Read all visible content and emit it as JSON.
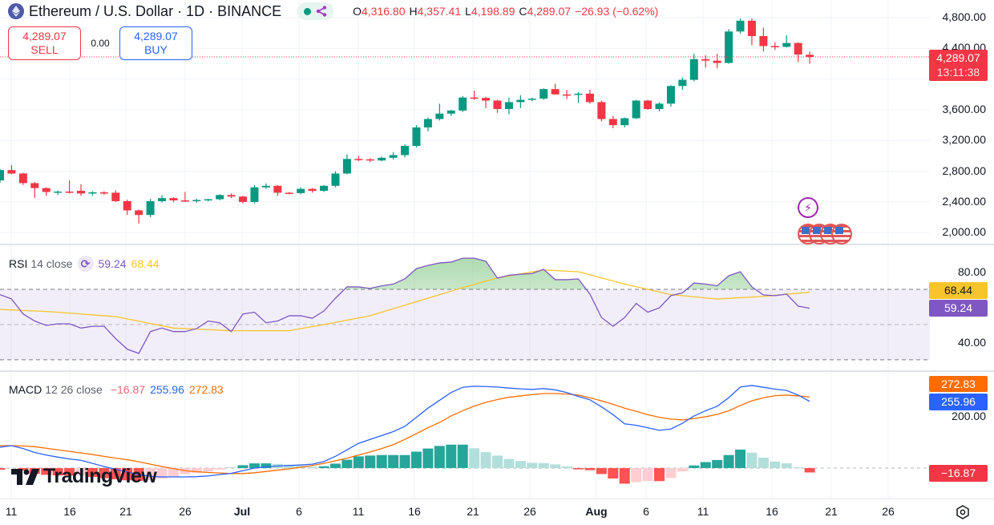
{
  "header": {
    "title": "Ethereum / U.S. Dollar · 1D · BINANCE",
    "ohlc": {
      "o_label": "O",
      "o": "4,316.80",
      "h_label": "H",
      "h": "4,357.41",
      "l_label": "L",
      "l": "4,198.89",
      "c_label": "C",
      "c": "4,289.07",
      "change": "−26.93 (−0.62%)"
    }
  },
  "trade": {
    "sell_price": "4,289.07",
    "sell_label": "SELL",
    "spread": "0.00",
    "buy_price": "4,289.07",
    "buy_label": "BUY"
  },
  "price_axis": {
    "labels": [
      "4,800.00",
      "4,400.00",
      "3,600.00",
      "3,200.00",
      "2,800.00",
      "2,400.00",
      "2,000.00"
    ],
    "current_price": "4,289.07",
    "countdown": "13:11:38"
  },
  "rsi": {
    "label": "RSI",
    "params": "14 close",
    "value": "59.24",
    "ma_value": "68.44",
    "axis_labels": [
      "80.00",
      "40.00"
    ]
  },
  "macd": {
    "label": "MACD",
    "params": "12 26 close",
    "hist_value": "−16.87",
    "macd_value": "255.96",
    "signal_value": "272.83",
    "axis_labels": [
      "200.00"
    ]
  },
  "time_axis": [
    "11",
    "16",
    "21",
    "26",
    "Jul",
    "6",
    "11",
    "16",
    "21",
    "26",
    "Aug",
    "6",
    "11",
    "16",
    "21",
    "26"
  ],
  "brand": {
    "logo": "TradingView"
  },
  "icons": {
    "symbol": "ethereum-icon",
    "status": "market-open-dot",
    "share": "share-icon",
    "events": [
      "lightning-icon",
      "us-flag-icon",
      "us-flag-icon",
      "us-flag-icon",
      "us-flag-icon"
    ],
    "settings": "settings-icon"
  },
  "colors": {
    "up": "#089981",
    "down": "#f23645",
    "rsi": "#7e57c2",
    "rsi_ma": "#f7c52b",
    "macd": "#2962ff",
    "signal": "#ff6d00",
    "hist_up_strong": "#26a69a",
    "hist_up_weak": "#b2dfdb",
    "hist_down_strong": "#ff5252",
    "hist_down_weak": "#ffcdd2"
  },
  "chart_data": {
    "type": "candlestick",
    "symbol": "Ethereum / U.S. Dollar",
    "interval": "1D",
    "ylim": [
      1846,
      5030
    ],
    "grid": true,
    "candles_fields": [
      "date",
      "open",
      "high",
      "low",
      "close"
    ],
    "candles": [
      [
        "Jun 10",
        2680,
        2830,
        2650,
        2815
      ],
      [
        "Jun 11",
        2815,
        2880,
        2760,
        2770
      ],
      [
        "Jun 12",
        2770,
        2780,
        2620,
        2645
      ],
      [
        "Jun 13",
        2645,
        2660,
        2450,
        2580
      ],
      [
        "Jun 14",
        2580,
        2590,
        2480,
        2530
      ],
      [
        "Jun 15",
        2520,
        2550,
        2490,
        2535
      ],
      [
        "Jun 16",
        2535,
        2680,
        2510,
        2530
      ],
      [
        "Jun 17",
        2545,
        2630,
        2480,
        2510
      ],
      [
        "Jun 18",
        2510,
        2540,
        2480,
        2525
      ],
      [
        "Jun 19",
        2525,
        2540,
        2490,
        2520
      ],
      [
        "Jun 20",
        2520,
        2550,
        2400,
        2410
      ],
      [
        "Jun 21",
        2410,
        2430,
        2230,
        2290
      ],
      [
        "Jun 22",
        2290,
        2300,
        2120,
        2230
      ],
      [
        "Jun 23",
        2230,
        2440,
        2200,
        2410
      ],
      [
        "Jun 24",
        2410,
        2490,
        2390,
        2450
      ],
      [
        "Jun 25",
        2450,
        2460,
        2400,
        2420
      ],
      [
        "Jun 26",
        2420,
        2530,
        2400,
        2415
      ],
      [
        "Jun 27",
        2415,
        2440,
        2390,
        2425
      ],
      [
        "Jun 28",
        2425,
        2440,
        2410,
        2435
      ],
      [
        "Jun 29",
        2435,
        2500,
        2420,
        2490
      ],
      [
        "Jun 30",
        2490,
        2510,
        2450,
        2470
      ],
      [
        "Jul 1",
        2470,
        2480,
        2380,
        2400
      ],
      [
        "Jul 2",
        2400,
        2620,
        2380,
        2590
      ],
      [
        "Jul 3",
        2590,
        2640,
        2570,
        2610
      ],
      [
        "Jul 4",
        2610,
        2620,
        2480,
        2520
      ],
      [
        "Jul 5",
        2520,
        2530,
        2500,
        2515
      ],
      [
        "Jul 6",
        2515,
        2590,
        2500,
        2570
      ],
      [
        "Jul 7",
        2570,
        2580,
        2520,
        2545
      ],
      [
        "Jul 8",
        2545,
        2620,
        2530,
        2610
      ],
      [
        "Jul 9",
        2610,
        2800,
        2590,
        2770
      ],
      [
        "Jul 10",
        2770,
        3020,
        2760,
        2960
      ],
      [
        "Jul 11",
        2960,
        3000,
        2930,
        2955
      ],
      [
        "Jul 12",
        2955,
        2970,
        2920,
        2940
      ],
      [
        "Jul 13",
        2940,
        2990,
        2930,
        2975
      ],
      [
        "Jul 14",
        2975,
        3050,
        2950,
        3010
      ],
      [
        "Jul 15",
        3010,
        3150,
        2980,
        3130
      ],
      [
        "Jul 16",
        3130,
        3400,
        3110,
        3370
      ],
      [
        "Jul 17",
        3370,
        3500,
        3320,
        3480
      ],
      [
        "Jul 18",
        3480,
        3680,
        3460,
        3550
      ],
      [
        "Jul 19",
        3550,
        3600,
        3520,
        3590
      ],
      [
        "Jul 20",
        3590,
        3780,
        3570,
        3760
      ],
      [
        "Jul 21",
        3760,
        3850,
        3730,
        3755
      ],
      [
        "Jul 22",
        3755,
        3770,
        3620,
        3720
      ],
      [
        "Jul 23",
        3720,
        3730,
        3560,
        3610
      ],
      [
        "Jul 24",
        3610,
        3760,
        3540,
        3700
      ],
      [
        "Jul 25",
        3700,
        3790,
        3620,
        3730
      ],
      [
        "Jul 26",
        3730,
        3760,
        3710,
        3745
      ],
      [
        "Jul 27",
        3745,
        3880,
        3730,
        3870
      ],
      [
        "Jul 28",
        3870,
        3940,
        3800,
        3800
      ],
      [
        "Jul 29",
        3800,
        3860,
        3740,
        3795
      ],
      [
        "Jul 30",
        3795,
        3830,
        3690,
        3810
      ],
      [
        "Jul 31",
        3810,
        3860,
        3680,
        3700
      ],
      [
        "Aug 1",
        3700,
        3720,
        3450,
        3480
      ],
      [
        "Aug 2",
        3480,
        3520,
        3360,
        3400
      ],
      [
        "Aug 3",
        3400,
        3500,
        3370,
        3490
      ],
      [
        "Aug 4",
        3490,
        3730,
        3480,
        3720
      ],
      [
        "Aug 5",
        3720,
        3730,
        3600,
        3610
      ],
      [
        "Aug 6",
        3610,
        3700,
        3580,
        3680
      ],
      [
        "Aug 7",
        3680,
        3920,
        3640,
        3910
      ],
      [
        "Aug 8",
        3910,
        4020,
        3860,
        3990
      ],
      [
        "Aug 9",
        3990,
        4330,
        3970,
        4260
      ],
      [
        "Aug 10",
        4260,
        4310,
        4150,
        4240
      ],
      [
        "Aug 11",
        4240,
        4330,
        4140,
        4210
      ],
      [
        "Aug 12",
        4210,
        4650,
        4200,
        4620
      ],
      [
        "Aug 13",
        4620,
        4790,
        4590,
        4760
      ],
      [
        "Aug 14",
        4760,
        4790,
        4440,
        4560
      ],
      [
        "Aug 15",
        4560,
        4670,
        4360,
        4430
      ],
      [
        "Aug 16",
        4430,
        4480,
        4380,
        4420
      ],
      [
        "Aug 17",
        4420,
        4570,
        4410,
        4470
      ],
      [
        "Aug 18",
        4470,
        4480,
        4220,
        4320
      ],
      [
        "Aug 19",
        4316.8,
        4357.41,
        4198.89,
        4289.07
      ]
    ],
    "rsi": {
      "ylim": [
        24,
        95.5
      ],
      "levels": [
        70,
        50,
        30
      ],
      "values": [
        67,
        64.5,
        56,
        52,
        49.5,
        50.4,
        50.4,
        48,
        49,
        49,
        42,
        36,
        33.6,
        46,
        48,
        46,
        46,
        47.7,
        52,
        51,
        46,
        56,
        57,
        51,
        52,
        55,
        55,
        53.6,
        57.7,
        65,
        71.4,
        71.4,
        70.5,
        72,
        73,
        76,
        81.8,
        83.6,
        85,
        85.5,
        87.7,
        87.7,
        86,
        76.4,
        78,
        78.6,
        79,
        81.4,
        75.5,
        75.5,
        75.9,
        67.3,
        54,
        49,
        54,
        62,
        57,
        59.5,
        66.4,
        68,
        73.6,
        73,
        72,
        77.7,
        80,
        71.4,
        66.8,
        66.4,
        67.3,
        60.5,
        59.24
      ],
      "ma": [
        58.6,
        58.3,
        58,
        57.7,
        57.4,
        57,
        56.5,
        56,
        55.5,
        55,
        54.5,
        53.2,
        51.9,
        50.6,
        49.3,
        48,
        47.7,
        47.4,
        47.1,
        46.8,
        46.5,
        46.5,
        46.5,
        46.5,
        46.5,
        46.5,
        47.7,
        48.8,
        50,
        51.2,
        52.5,
        53.7,
        55,
        57,
        59,
        61,
        63,
        65,
        67,
        69,
        71,
        72.8,
        74.7,
        76.5,
        77.6,
        78.8,
        79.9,
        81,
        80.7,
        80.3,
        80,
        78.3,
        76.5,
        74.8,
        73,
        71.5,
        70,
        68.5,
        67,
        66.4,
        65.8,
        65.1,
        64.5,
        64.9,
        65.3,
        65.6,
        66,
        66.6,
        67.2,
        67.8,
        68.44
      ]
    },
    "macd": {
      "ylim": [
        -117,
        366
      ],
      "macd": [
        80,
        86,
        75,
        60,
        50,
        42,
        35,
        30,
        18,
        6,
        -5,
        -15,
        -25,
        -32,
        -34,
        -34,
        -34,
        -33,
        -30,
        -25,
        -20,
        -10,
        0,
        5,
        8,
        10,
        12,
        15,
        25,
        45,
        70,
        95,
        110,
        125,
        140,
        160,
        195,
        230,
        260,
        290,
        310,
        314,
        313,
        311,
        307,
        304,
        302,
        305,
        300,
        290,
        275,
        262,
        235,
        205,
        170,
        164,
        155,
        145,
        150,
        172,
        200,
        220,
        237,
        270,
        311,
        317,
        310,
        303,
        298,
        280,
        255.96
      ],
      "signal": [
        86,
        86,
        85,
        82,
        76,
        70,
        64,
        58,
        52,
        45,
        38,
        32,
        24,
        15,
        6,
        -2,
        -10,
        -14,
        -17,
        -19,
        -21,
        -21,
        -18,
        -13,
        -8,
        -3,
        3,
        10,
        18,
        28,
        38,
        50,
        62,
        75,
        90,
        110,
        132,
        155,
        175,
        200,
        220,
        238,
        252,
        263,
        272,
        277,
        282,
        286,
        286,
        284,
        280,
        270,
        258,
        245,
        230,
        218,
        205,
        195,
        188,
        185,
        190,
        197,
        206,
        220,
        240,
        258,
        270,
        278,
        280,
        277,
        272.83
      ]
    }
  }
}
